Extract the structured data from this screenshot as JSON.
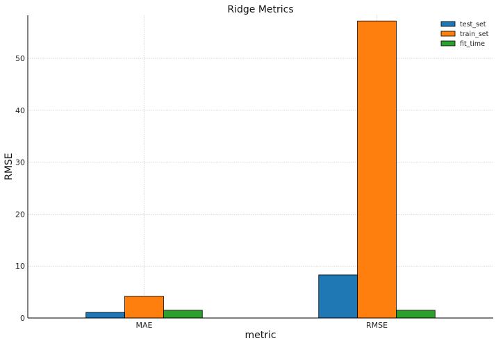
{
  "chart_data": {
    "type": "bar",
    "title": "Ridge Metrics",
    "xlabel": "metric",
    "ylabel": "RMSE",
    "categories": [
      "MAE",
      "RMSE"
    ],
    "series": [
      {
        "name": "test_set",
        "values": [
          1.1,
          8.3
        ],
        "color": "#1f77b4"
      },
      {
        "name": "train_set",
        "values": [
          4.2,
          57.2
        ],
        "color": "#ff7f0e"
      },
      {
        "name": "fit_time",
        "values": [
          1.5,
          1.5
        ],
        "color": "#2ca02c"
      }
    ],
    "ylim": [
      0,
      58.3
    ],
    "yticks": [
      0,
      10,
      20,
      30,
      40,
      50
    ],
    "grid": true,
    "legend_position": "top-right"
  }
}
